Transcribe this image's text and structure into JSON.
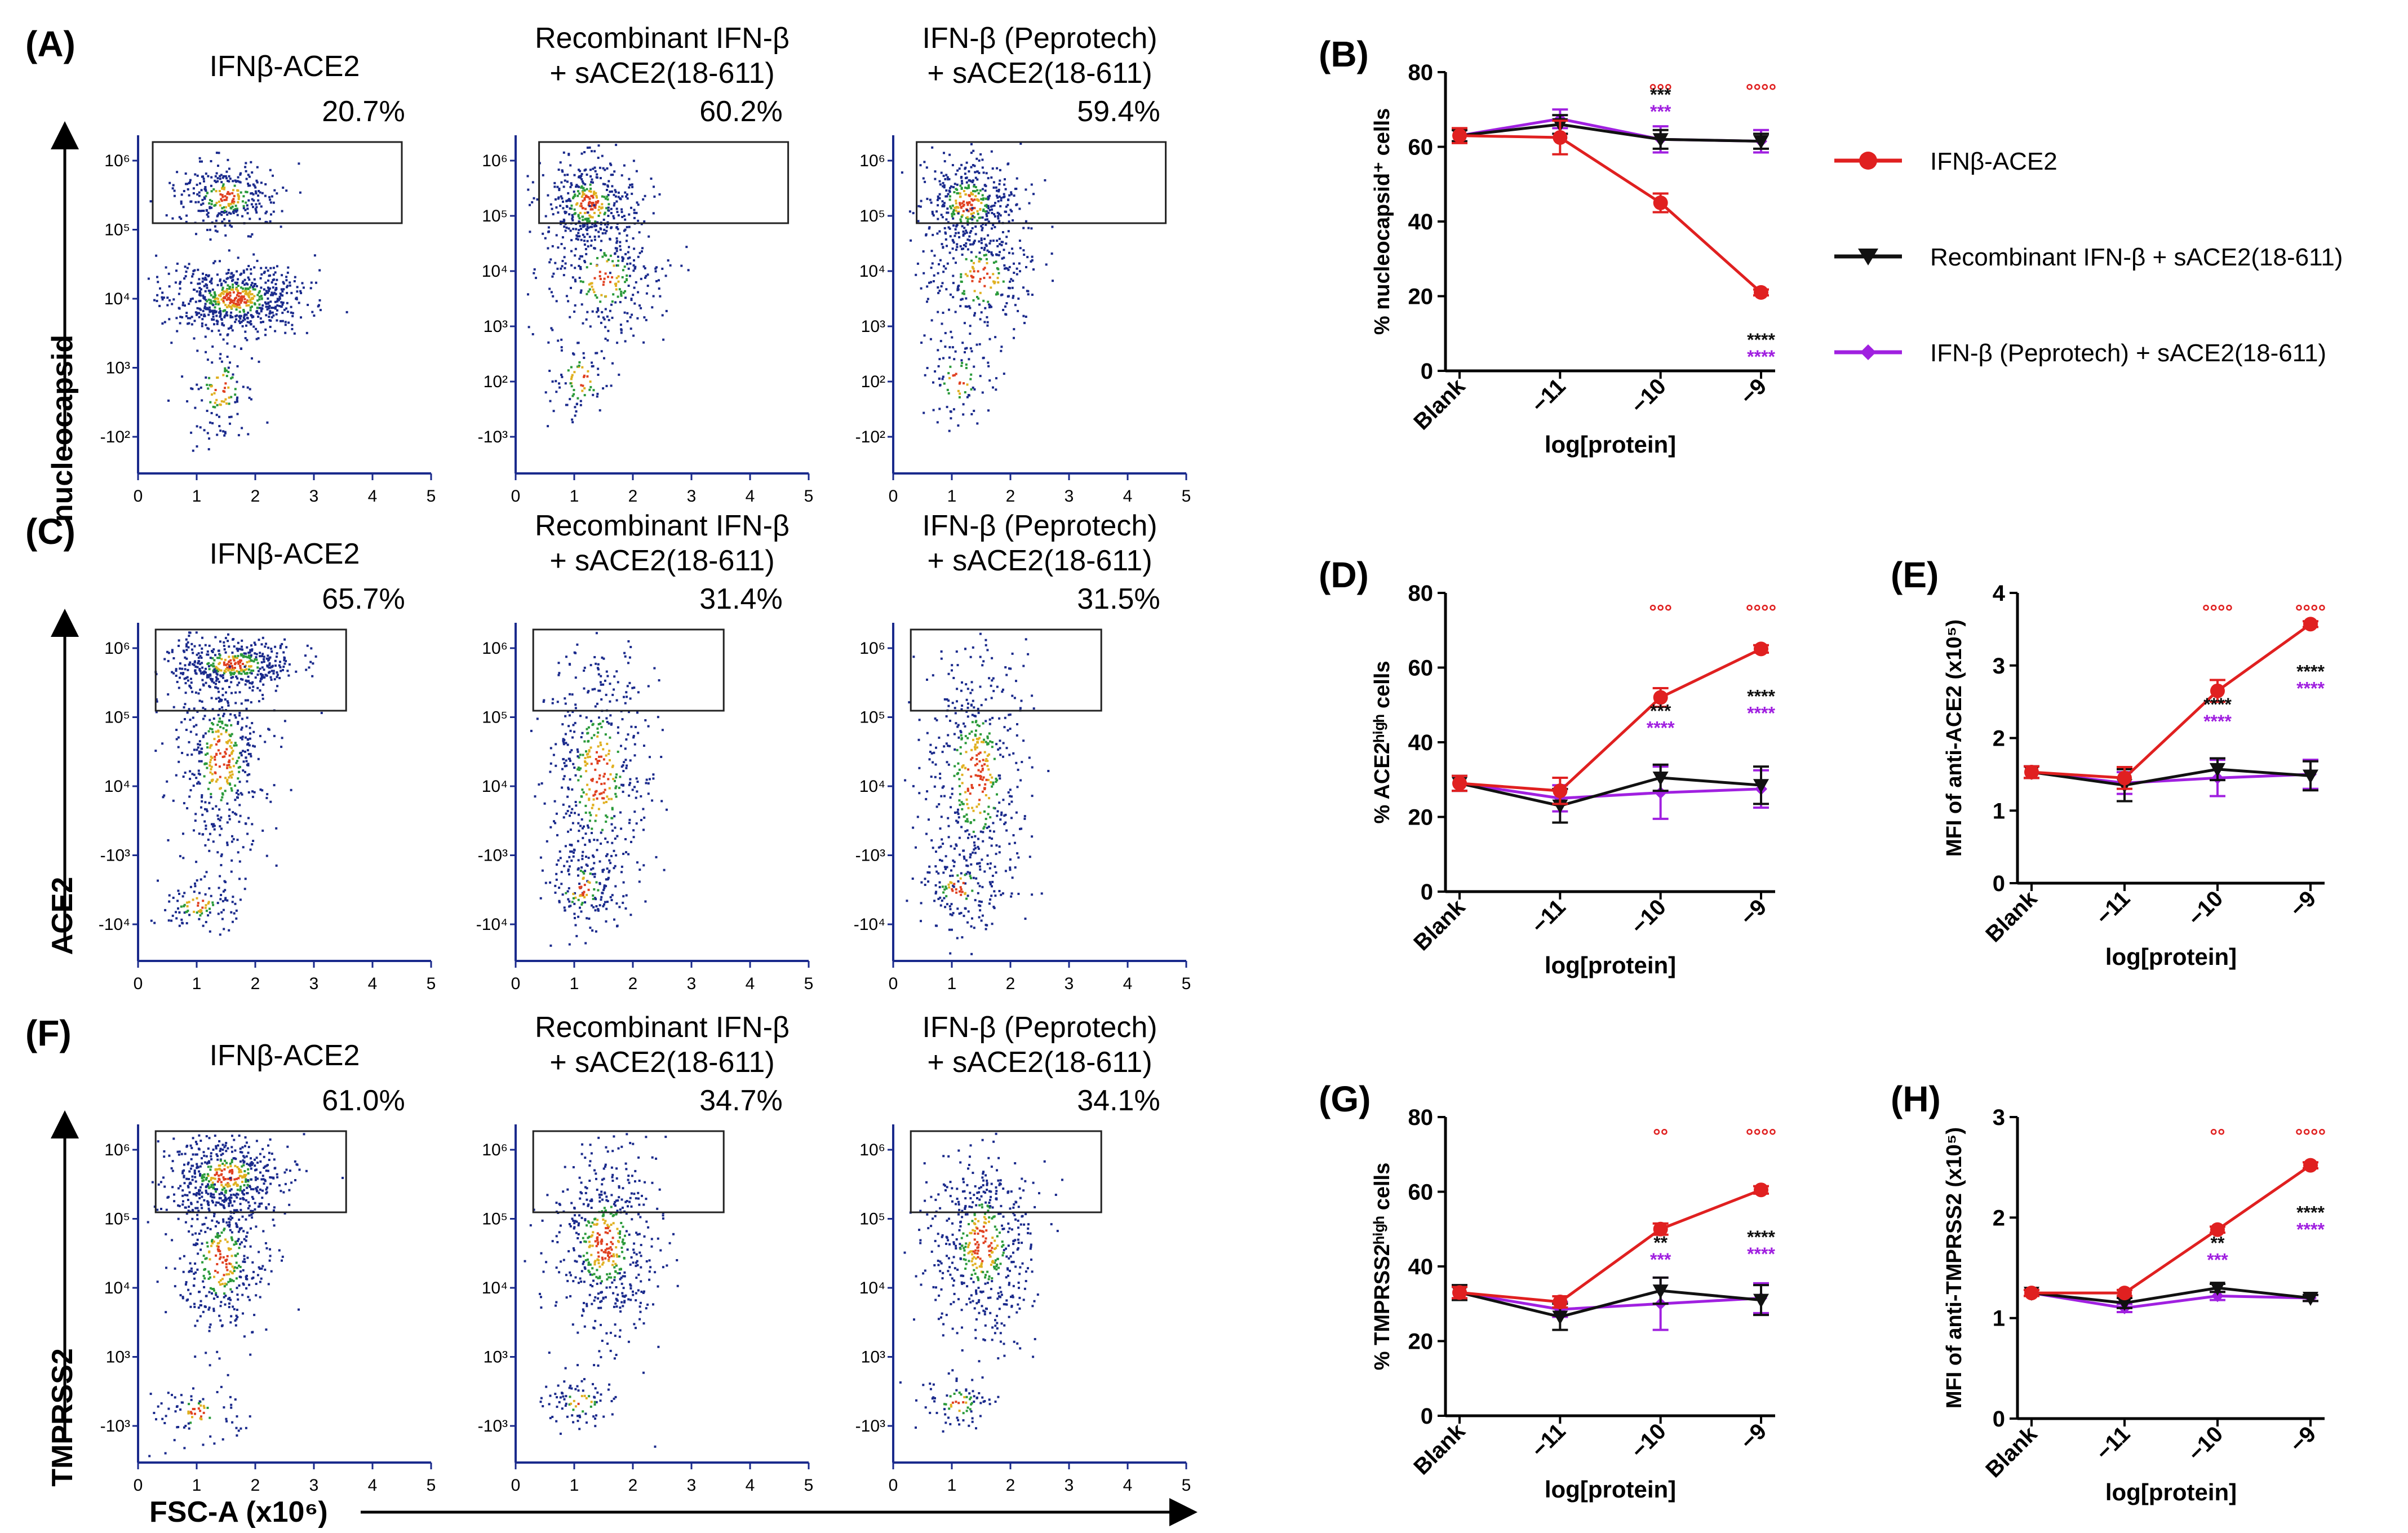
{
  "colors": {
    "red": "#e02020",
    "black": "#111111",
    "purple": "#a020e0",
    "dot": "#1a2a8c",
    "hot1": "#2a9a3a",
    "hot2": "#e0b020",
    "hot3": "#e04020"
  },
  "legend": [
    {
      "label": "IFNβ-ACE2",
      "marker": "circle",
      "color": "#e02020"
    },
    {
      "label": "Recombinant IFN-β + sACE2(18-611)",
      "marker": "triangle-down",
      "color": "#111111"
    },
    {
      "label": "IFN-β (Peprotech) + sACE2(18-611)",
      "marker": "diamond",
      "color": "#a020e0"
    }
  ],
  "flow_rows": [
    {
      "panel": "(A)",
      "ylabel": "nucleocapsid",
      "plots": [
        {
          "title": [
            "IFNβ-ACE2"
          ],
          "pct": "20.7%",
          "yticks": [
            "10⁶",
            "10⁵",
            "10⁴",
            "10³",
            "-10²"
          ],
          "dist": "A1"
        },
        {
          "title": [
            "Recombinant IFN-β",
            "+ sACE2(18-611)"
          ],
          "pct": "60.2%",
          "yticks": [
            "10⁶",
            "10⁵",
            "10⁴",
            "10³",
            "10²",
            "-10³"
          ],
          "dist": "A2"
        },
        {
          "title": [
            "IFN-β (Peprotech)",
            "+ sACE2(18-611)"
          ],
          "pct": "59.4%",
          "yticks": [
            "10⁶",
            "10⁵",
            "10⁴",
            "10³",
            "10²",
            "-10²"
          ],
          "dist": "A2"
        }
      ]
    },
    {
      "panel": "(C)",
      "ylabel": "ACE2",
      "plots": [
        {
          "title": [
            "IFNβ-ACE2"
          ],
          "pct": "65.7%",
          "yticks": [
            "10⁶",
            "10⁵",
            "10⁴",
            "-10³",
            "-10⁴"
          ],
          "dist": "C1"
        },
        {
          "title": [
            "Recombinant IFN-β",
            "+ sACE2(18-611)"
          ],
          "pct": "31.4%",
          "yticks": [
            "10⁶",
            "10⁵",
            "10⁴",
            "-10³",
            "-10⁴"
          ],
          "dist": "C2"
        },
        {
          "title": [
            "IFN-β (Peprotech)",
            "+ sACE2(18-611)"
          ],
          "pct": "31.5%",
          "yticks": [
            "10⁶",
            "10⁵",
            "10⁴",
            "-10³",
            "-10⁴"
          ],
          "dist": "C2"
        }
      ]
    },
    {
      "panel": "(F)",
      "ylabel": "TMPRSS2",
      "plots": [
        {
          "title": [
            "IFNβ-ACE2"
          ],
          "pct": "61.0%",
          "yticks": [
            "10⁶",
            "10⁵",
            "10⁴",
            "10³",
            "-10³"
          ],
          "dist": "F1"
        },
        {
          "title": [
            "Recombinant IFN-β",
            "+ sACE2(18-611)"
          ],
          "pct": "34.7%",
          "yticks": [
            "10⁶",
            "10⁵",
            "10⁴",
            "10³",
            "-10³"
          ],
          "dist": "F2"
        },
        {
          "title": [
            "IFN-β (Peprotech)",
            "+ sACE2(18-611)"
          ],
          "pct": "34.1%",
          "yticks": [
            "10⁶",
            "10⁵",
            "10⁴",
            "10³",
            "-10³"
          ],
          "dist": "F2"
        }
      ]
    }
  ],
  "flow_xticks": [
    "0",
    "1",
    "2",
    "3",
    "4",
    "5"
  ],
  "flow_xlabel": "FSC-A (x10⁶)",
  "chart_data": [
    {
      "panel": "(B)",
      "type": "line",
      "categories": [
        "Blank",
        "−11",
        "−10",
        "−9"
      ],
      "xlabel": "log[protein]",
      "ylabel": "% nucleocapsid⁺ cells",
      "ylim": [
        0,
        80
      ],
      "yticks": [
        "0",
        "20",
        "40",
        "60",
        "80"
      ],
      "series": [
        {
          "name": "IFNβ-ACE2",
          "values": [
            63,
            62.5,
            45,
            21
          ],
          "err": [
            2,
            4.5,
            2.5,
            0.8
          ]
        },
        {
          "name": "Recombinant IFN-β + sACE2(18-611)",
          "values": [
            63,
            66,
            62,
            61.5
          ],
          "err": [
            1.5,
            2.5,
            2.5,
            2
          ]
        },
        {
          "name": "IFN-β (Peprotech) + sACE2(18-611)",
          "values": [
            63,
            67.5,
            62,
            61.5
          ],
          "err": [
            1.5,
            2.5,
            3.5,
            3
          ]
        }
      ],
      "annotations": [
        {
          "cat": 2,
          "lines": [
            {
              "t": "°°°",
              "c": "red"
            },
            {
              "t": "***",
              "c": "black"
            },
            {
              "t": "***",
              "c": "purple"
            }
          ]
        },
        {
          "cat": 3,
          "lines": [
            {
              "t": "°°°°",
              "c": "red"
            },
            {
              "t": "****",
              "c": "black"
            },
            {
              "t": "****",
              "c": "purple"
            }
          ]
        }
      ]
    },
    {
      "panel": "(D)",
      "type": "line",
      "categories": [
        "Blank",
        "−11",
        "−10",
        "−9"
      ],
      "xlabel": "log[protein]",
      "ylabel": "% ACE2ʰⁱᵍʰ cells",
      "ylim": [
        0,
        80
      ],
      "yticks": [
        "0",
        "20",
        "40",
        "60",
        "80"
      ],
      "series": [
        {
          "name": "IFNβ-ACE2",
          "values": [
            29,
            27,
            52,
            65
          ],
          "err": [
            2,
            3.5,
            2.5,
            1
          ]
        },
        {
          "name": "Recombinant IFN-β + sACE2(18-611)",
          "values": [
            29,
            23,
            30.5,
            28.5
          ],
          "err": [
            2,
            4.5,
            3.5,
            5
          ]
        },
        {
          "name": "IFN-β (Peprotech) + sACE2(18-611)",
          "values": [
            29,
            25,
            26.5,
            27.5
          ],
          "err": [
            2,
            3.5,
            7,
            5
          ]
        }
      ],
      "annotations": [
        {
          "cat": 2,
          "lines": [
            {
              "t": "°°°",
              "c": "red"
            },
            {
              "t": "***",
              "c": "black"
            },
            {
              "t": "****",
              "c": "purple"
            }
          ]
        },
        {
          "cat": 3,
          "lines": [
            {
              "t": "°°°°",
              "c": "red"
            },
            {
              "t": "****",
              "c": "black"
            },
            {
              "t": "****",
              "c": "purple"
            }
          ]
        }
      ]
    },
    {
      "panel": "(E)",
      "type": "line",
      "categories": [
        "Blank",
        "−11",
        "−10",
        "−9"
      ],
      "xlabel": "log[protein]",
      "ylabel": "MFI of anti-ACE2 (x10⁵)",
      "ylim": [
        0,
        4
      ],
      "yticks": [
        "0",
        "1",
        "2",
        "3",
        "4"
      ],
      "series": [
        {
          "name": "IFNβ-ACE2",
          "values": [
            1.53,
            1.45,
            2.65,
            3.57
          ],
          "err": [
            0.08,
            0.15,
            0.15,
            0.04
          ]
        },
        {
          "name": "Recombinant IFN-β + sACE2(18-611)",
          "values": [
            1.53,
            1.35,
            1.57,
            1.48
          ],
          "err": [
            0.08,
            0.22,
            0.15,
            0.2
          ]
        },
        {
          "name": "IFN-β (Peprotech) + sACE2(18-611)",
          "values": [
            1.53,
            1.38,
            1.45,
            1.5
          ],
          "err": [
            0.08,
            0.15,
            0.25,
            0.2
          ]
        }
      ],
      "annotations": [
        {
          "cat": 2,
          "lines": [
            {
              "t": "°°°°",
              "c": "red"
            },
            {
              "t": "****",
              "c": "black"
            },
            {
              "t": "****",
              "c": "purple"
            }
          ]
        },
        {
          "cat": 3,
          "lines": [
            {
              "t": "°°°°",
              "c": "red"
            },
            {
              "t": "****",
              "c": "black"
            },
            {
              "t": "****",
              "c": "purple"
            }
          ]
        }
      ]
    },
    {
      "panel": "(G)",
      "type": "line",
      "categories": [
        "Blank",
        "−11",
        "−10",
        "−9"
      ],
      "xlabel": "log[protein]",
      "ylabel": "% TMPRSS2ʰⁱᵍʰ cells",
      "ylim": [
        0,
        80
      ],
      "yticks": [
        "0",
        "20",
        "40",
        "60",
        "80"
      ],
      "series": [
        {
          "name": "IFNβ-ACE2",
          "values": [
            33,
            30.5,
            50,
            60.5
          ],
          "err": [
            1.5,
            1.5,
            1.5,
            1
          ]
        },
        {
          "name": "Recombinant IFN-β + sACE2(18-611)",
          "values": [
            33,
            26.5,
            33.5,
            31
          ],
          "err": [
            2,
            3.5,
            3.5,
            4
          ]
        },
        {
          "name": "IFN-β (Peprotech) + sACE2(18-611)",
          "values": [
            33,
            28.5,
            30,
            31.5
          ],
          "err": [
            1.5,
            2,
            7,
            4
          ]
        }
      ],
      "annotations": [
        {
          "cat": 2,
          "lines": [
            {
              "t": "°°",
              "c": "red"
            },
            {
              "t": "**",
              "c": "black"
            },
            {
              "t": "***",
              "c": "purple"
            }
          ]
        },
        {
          "cat": 3,
          "lines": [
            {
              "t": "°°°°",
              "c": "red"
            },
            {
              "t": "****",
              "c": "black"
            },
            {
              "t": "****",
              "c": "purple"
            }
          ]
        }
      ]
    },
    {
      "panel": "(H)",
      "type": "line",
      "categories": [
        "Blank",
        "−11",
        "−10",
        "−9"
      ],
      "xlabel": "log[protein]",
      "ylabel": "MFI of anti-TMPRSS2 (x10⁵)",
      "ylim": [
        0,
        3
      ],
      "yticks": [
        "0",
        "1",
        "2",
        "3"
      ],
      "series": [
        {
          "name": "IFNβ-ACE2",
          "values": [
            1.25,
            1.25,
            1.88,
            2.52
          ],
          "err": [
            0.03,
            0.03,
            0.03,
            0.03
          ]
        },
        {
          "name": "Recombinant IFN-β + sACE2(18-611)",
          "values": [
            1.25,
            1.15,
            1.3,
            1.2
          ],
          "err": [
            0.03,
            0.05,
            0.04,
            0.03
          ]
        },
        {
          "name": "IFN-β (Peprotech) + sACE2(18-611)",
          "values": [
            1.25,
            1.1,
            1.22,
            1.2
          ],
          "err": [
            0.03,
            0.04,
            0.04,
            0.03
          ]
        }
      ],
      "annotations": [
        {
          "cat": 2,
          "lines": [
            {
              "t": "°°",
              "c": "red"
            },
            {
              "t": "**",
              "c": "black"
            },
            {
              "t": "***",
              "c": "purple"
            }
          ]
        },
        {
          "cat": 3,
          "lines": [
            {
              "t": "°°°°",
              "c": "red"
            },
            {
              "t": "****",
              "c": "black"
            },
            {
              "t": "****",
              "c": "purple"
            }
          ]
        }
      ]
    }
  ]
}
